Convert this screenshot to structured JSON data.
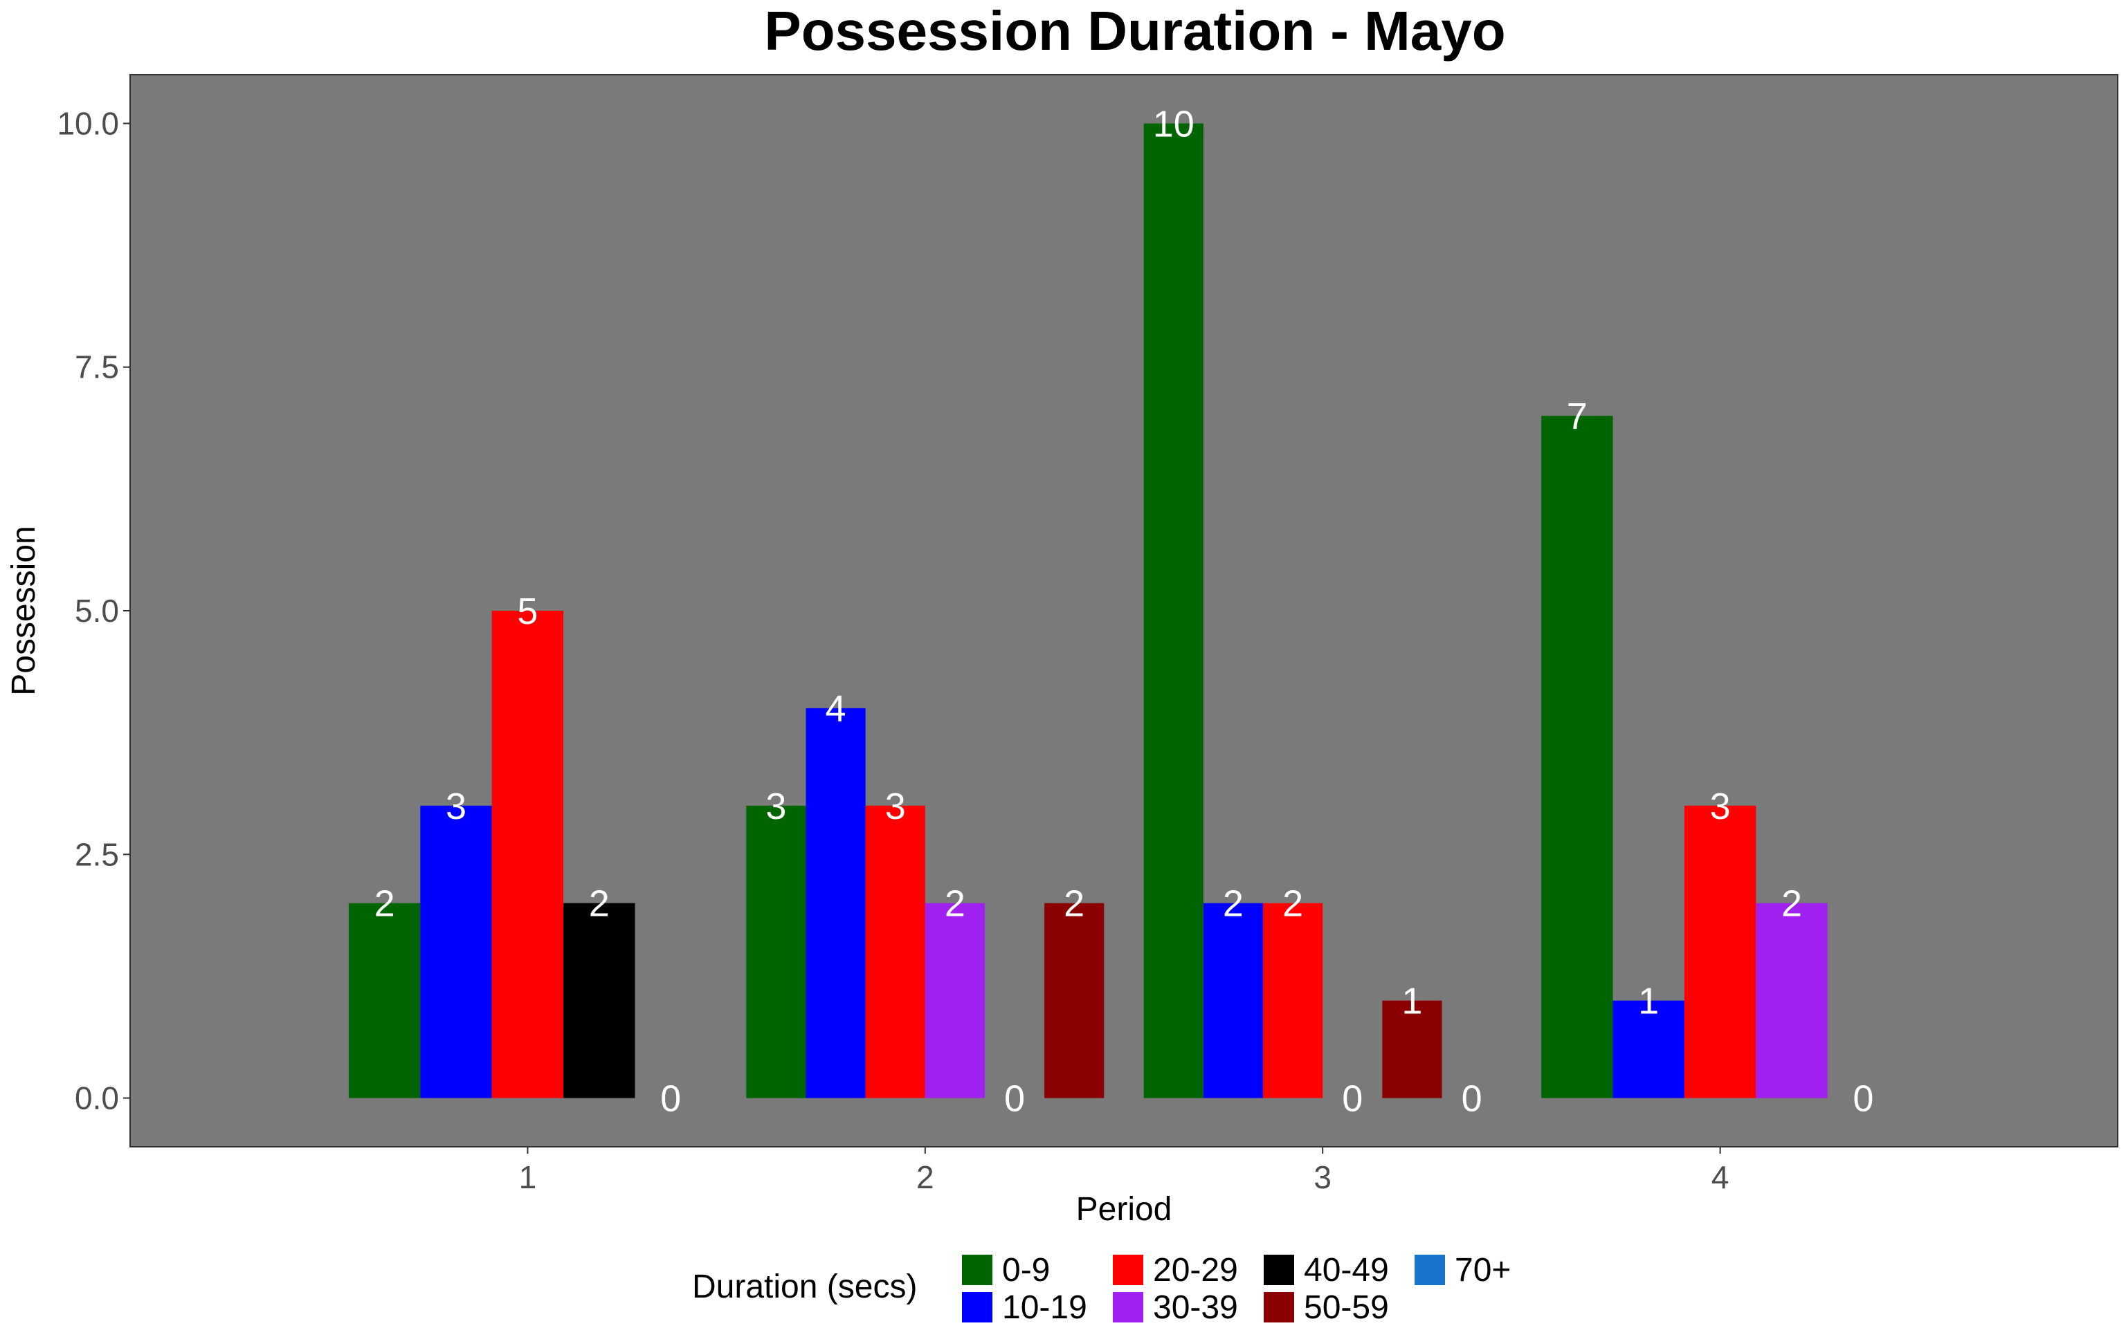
{
  "chart_data": {
    "type": "bar",
    "title": "Possession Duration - Mayo",
    "xlabel": "Period",
    "ylabel": "Possession",
    "ylim": [
      -0.5,
      10.5
    ],
    "yticks": [
      0.0,
      2.5,
      5.0,
      7.5,
      10.0
    ],
    "ytick_labels": [
      "0.0",
      "2.5",
      "5.0",
      "7.5",
      "10.0"
    ],
    "categories": [
      "1",
      "2",
      "3",
      "4"
    ],
    "legend_title": "Duration (secs)",
    "legend_position": "bottom",
    "grid": false,
    "panel_background": "#7a7a7a",
    "series": [
      {
        "name": "0-9",
        "color": "#006400"
      },
      {
        "name": "10-19",
        "color": "#0000ff"
      },
      {
        "name": "20-29",
        "color": "#ff0000"
      },
      {
        "name": "30-39",
        "color": "#a020f0"
      },
      {
        "name": "40-49",
        "color": "#000000"
      },
      {
        "name": "50-59",
        "color": "#8b0000"
      },
      {
        "name": "70+",
        "color": "#1874cd"
      }
    ],
    "groups": [
      {
        "period": "1",
        "bars": [
          {
            "series": "0-9",
            "value": 2
          },
          {
            "series": "10-19",
            "value": 3
          },
          {
            "series": "20-29",
            "value": 5
          },
          {
            "series": "40-49",
            "value": 2
          },
          {
            "series": "70+",
            "value": 0
          }
        ]
      },
      {
        "period": "2",
        "bars": [
          {
            "series": "0-9",
            "value": 3
          },
          {
            "series": "10-19",
            "value": 4
          },
          {
            "series": "20-29",
            "value": 3
          },
          {
            "series": "30-39",
            "value": 2
          },
          {
            "series": "40-49",
            "value": 0
          },
          {
            "series": "50-59",
            "value": 2
          }
        ]
      },
      {
        "period": "3",
        "bars": [
          {
            "series": "0-9",
            "value": 10
          },
          {
            "series": "10-19",
            "value": 2
          },
          {
            "series": "20-29",
            "value": 2
          },
          {
            "series": "40-49",
            "value": 0
          },
          {
            "series": "50-59",
            "value": 1
          },
          {
            "series": "70+",
            "value": 0
          }
        ]
      },
      {
        "period": "4",
        "bars": [
          {
            "series": "0-9",
            "value": 7
          },
          {
            "series": "10-19",
            "value": 1
          },
          {
            "series": "20-29",
            "value": 3
          },
          {
            "series": "30-39",
            "value": 2
          },
          {
            "series": "70+",
            "value": 0
          }
        ]
      }
    ]
  }
}
